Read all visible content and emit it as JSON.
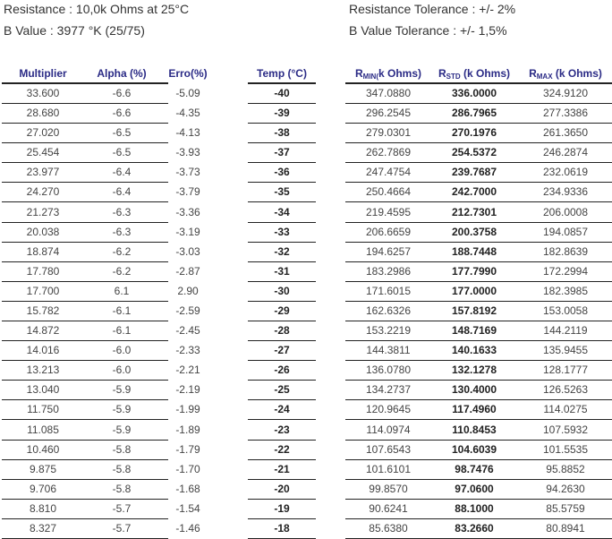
{
  "info": {
    "resistance": "Resistance : 10,0k Ohms at 25°C",
    "b_value": "B Value : 3977 °K (25/75)",
    "resistance_tolerance": "Resistance Tolerance : +/- 2%",
    "b_value_tolerance": "B Value Tolerance : +/- 1,5%"
  },
  "headers": {
    "multiplier": "Multiplier",
    "alpha": "Alpha (%)",
    "erro": "Erro(%)",
    "temp": "Temp (°C)",
    "rmin": {
      "r": "R",
      "sub": "MIN(",
      "rest": "k Ohms)"
    },
    "rstd": {
      "r": "R",
      "sub": "STD",
      "rest": " (k Ohms)"
    },
    "rmax": {
      "r": "R",
      "sub": "MAX",
      "rest": " (k Ohms)"
    }
  },
  "rows": [
    {
      "multiplier": "33.600",
      "alpha": "-6.6",
      "erro": "-5.09",
      "temp": "-40",
      "rmin": "347.0880",
      "rstd": "336.0000",
      "rmax": "324.9120"
    },
    {
      "multiplier": "28.680",
      "alpha": "-6.6",
      "erro": "-4.35",
      "temp": "-39",
      "rmin": "296.2545",
      "rstd": "286.7965",
      "rmax": "277.3386"
    },
    {
      "multiplier": "27.020",
      "alpha": "-6.5",
      "erro": "-4.13",
      "temp": "-38",
      "rmin": "279.0301",
      "rstd": "270.1976",
      "rmax": "261.3650"
    },
    {
      "multiplier": "25.454",
      "alpha": "-6.5",
      "erro": "-3.93",
      "temp": "-37",
      "rmin": "262.7869",
      "rstd": "254.5372",
      "rmax": "246.2874"
    },
    {
      "multiplier": "23.977",
      "alpha": "-6.4",
      "erro": "-3.73",
      "temp": "-36",
      "rmin": "247.4754",
      "rstd": "239.7687",
      "rmax": "232.0619"
    },
    {
      "multiplier": "24.270",
      "alpha": "-6.4",
      "erro": "-3.79",
      "temp": "-35",
      "rmin": "250.4664",
      "rstd": "242.7000",
      "rmax": "234.9336"
    },
    {
      "multiplier": "21.273",
      "alpha": "-6.3",
      "erro": "-3.36",
      "temp": "-34",
      "rmin": "219.4595",
      "rstd": "212.7301",
      "rmax": "206.0008"
    },
    {
      "multiplier": "20.038",
      "alpha": "-6.3",
      "erro": "-3.19",
      "temp": "-33",
      "rmin": "206.6659",
      "rstd": "200.3758",
      "rmax": "194.0857"
    },
    {
      "multiplier": "18.874",
      "alpha": "-6.2",
      "erro": "-3.03",
      "temp": "-32",
      "rmin": "194.6257",
      "rstd": "188.7448",
      "rmax": "182.8639"
    },
    {
      "multiplier": "17.780",
      "alpha": "-6.2",
      "erro": "-2.87",
      "temp": "-31",
      "rmin": "183.2986",
      "rstd": "177.7990",
      "rmax": "172.2994"
    },
    {
      "multiplier": "17.700",
      "alpha": "6.1",
      "erro": "2.90",
      "temp": "-30",
      "rmin": "171.6015",
      "rstd": "177.0000",
      "rmax": "182.3985"
    },
    {
      "multiplier": "15.782",
      "alpha": "-6.1",
      "erro": "-2.59",
      "temp": "-29",
      "rmin": "162.6326",
      "rstd": "157.8192",
      "rmax": "153.0058"
    },
    {
      "multiplier": "14.872",
      "alpha": "-6.1",
      "erro": "-2.45",
      "temp": "-28",
      "rmin": "153.2219",
      "rstd": "148.7169",
      "rmax": "144.2119"
    },
    {
      "multiplier": "14.016",
      "alpha": "-6.0",
      "erro": "-2.33",
      "temp": "-27",
      "rmin": "144.3811",
      "rstd": "140.1633",
      "rmax": "135.9455"
    },
    {
      "multiplier": "13.213",
      "alpha": "-6.0",
      "erro": "-2.21",
      "temp": "-26",
      "rmin": "136.0780",
      "rstd": "132.1278",
      "rmax": "128.1777"
    },
    {
      "multiplier": "13.040",
      "alpha": "-5.9",
      "erro": "-2.19",
      "temp": "-25",
      "rmin": "134.2737",
      "rstd": "130.4000",
      "rmax": "126.5263"
    },
    {
      "multiplier": "11.750",
      "alpha": "-5.9",
      "erro": "-1.99",
      "temp": "-24",
      "rmin": "120.9645",
      "rstd": "117.4960",
      "rmax": "114.0275"
    },
    {
      "multiplier": "11.085",
      "alpha": "-5.9",
      "erro": "-1.89",
      "temp": "-23",
      "rmin": "114.0974",
      "rstd": "110.8453",
      "rmax": "107.5932"
    },
    {
      "multiplier": "10.460",
      "alpha": "-5.8",
      "erro": "-1.79",
      "temp": "-22",
      "rmin": "107.6543",
      "rstd": "104.6039",
      "rmax": "101.5535"
    },
    {
      "multiplier": "9.875",
      "alpha": "-5.8",
      "erro": "-1.70",
      "temp": "-21",
      "rmin": "101.6101",
      "rstd": "98.7476",
      "rmax": "95.8852"
    },
    {
      "multiplier": "9.706",
      "alpha": "-5.8",
      "erro": "-1.68",
      "temp": "-20",
      "rmin": "99.8570",
      "rstd": "97.0600",
      "rmax": "94.2630"
    },
    {
      "multiplier": "8.810",
      "alpha": "-5.7",
      "erro": "-1.54",
      "temp": "-19",
      "rmin": "90.6241",
      "rstd": "88.1000",
      "rmax": "85.5759"
    },
    {
      "multiplier": "8.327",
      "alpha": "-5.7",
      "erro": "-1.46",
      "temp": "-18",
      "rmin": "85.6380",
      "rstd": "83.2660",
      "rmax": "80.8941"
    }
  ]
}
